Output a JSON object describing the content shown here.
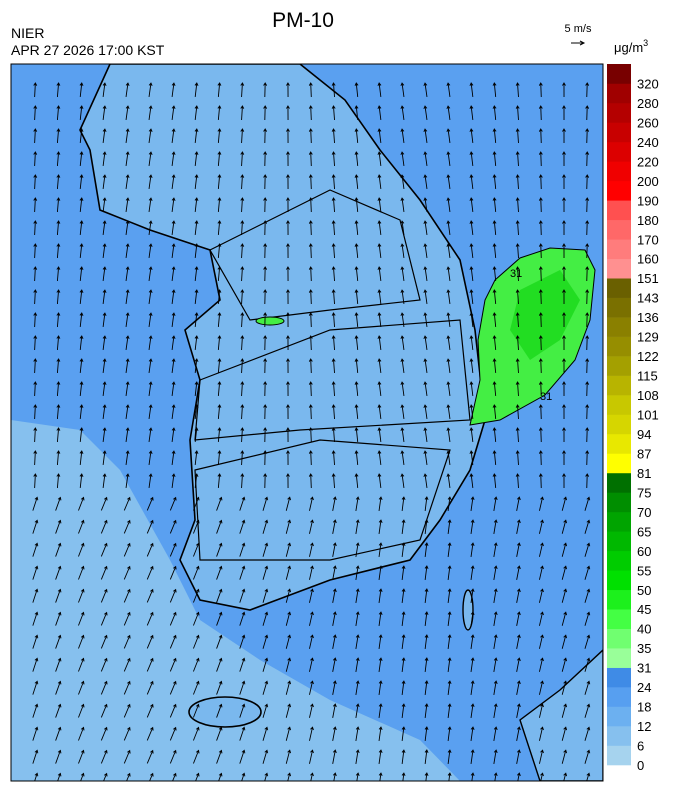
{
  "header": {
    "title": "PM-10",
    "agency": "NIER",
    "timestamp": "APR 27 2026 17:00 KST",
    "wind_scale": "5 m/s"
  },
  "map": {
    "contour_labels": [
      "31",
      "31"
    ]
  },
  "legend": {
    "unit": "μg/m",
    "unit_sup": "3",
    "ticks": [
      "0",
      "6",
      "12",
      "18",
      "24",
      "31",
      "35",
      "40",
      "45",
      "50",
      "55",
      "60",
      "65",
      "70",
      "75",
      "81",
      "87",
      "94",
      "101",
      "108",
      "115",
      "122",
      "129",
      "136",
      "143",
      "151",
      "160",
      "170",
      "180",
      "190",
      "200",
      "220",
      "240",
      "260",
      "280",
      "320"
    ],
    "colors": [
      "#a6d3ee",
      "#86c0ee",
      "#6cb0f0",
      "#579ff0",
      "#3f8be6",
      "#99ff99",
      "#70ff70",
      "#44ff44",
      "#1cf01c",
      "#00e000",
      "#00cc00",
      "#00b800",
      "#00a400",
      "#008e00",
      "#007000",
      "#ffff00",
      "#e8e800",
      "#d6d600",
      "#c8c800",
      "#b8b400",
      "#a4a000",
      "#968e00",
      "#8a8000",
      "#7a7000",
      "#6a6000",
      "#ff9090",
      "#ff7c7c",
      "#ff6868",
      "#ff5050",
      "#ff0000",
      "#f00000",
      "#dc0000",
      "#c80000",
      "#b40000",
      "#a00000",
      "#780000"
    ]
  }
}
